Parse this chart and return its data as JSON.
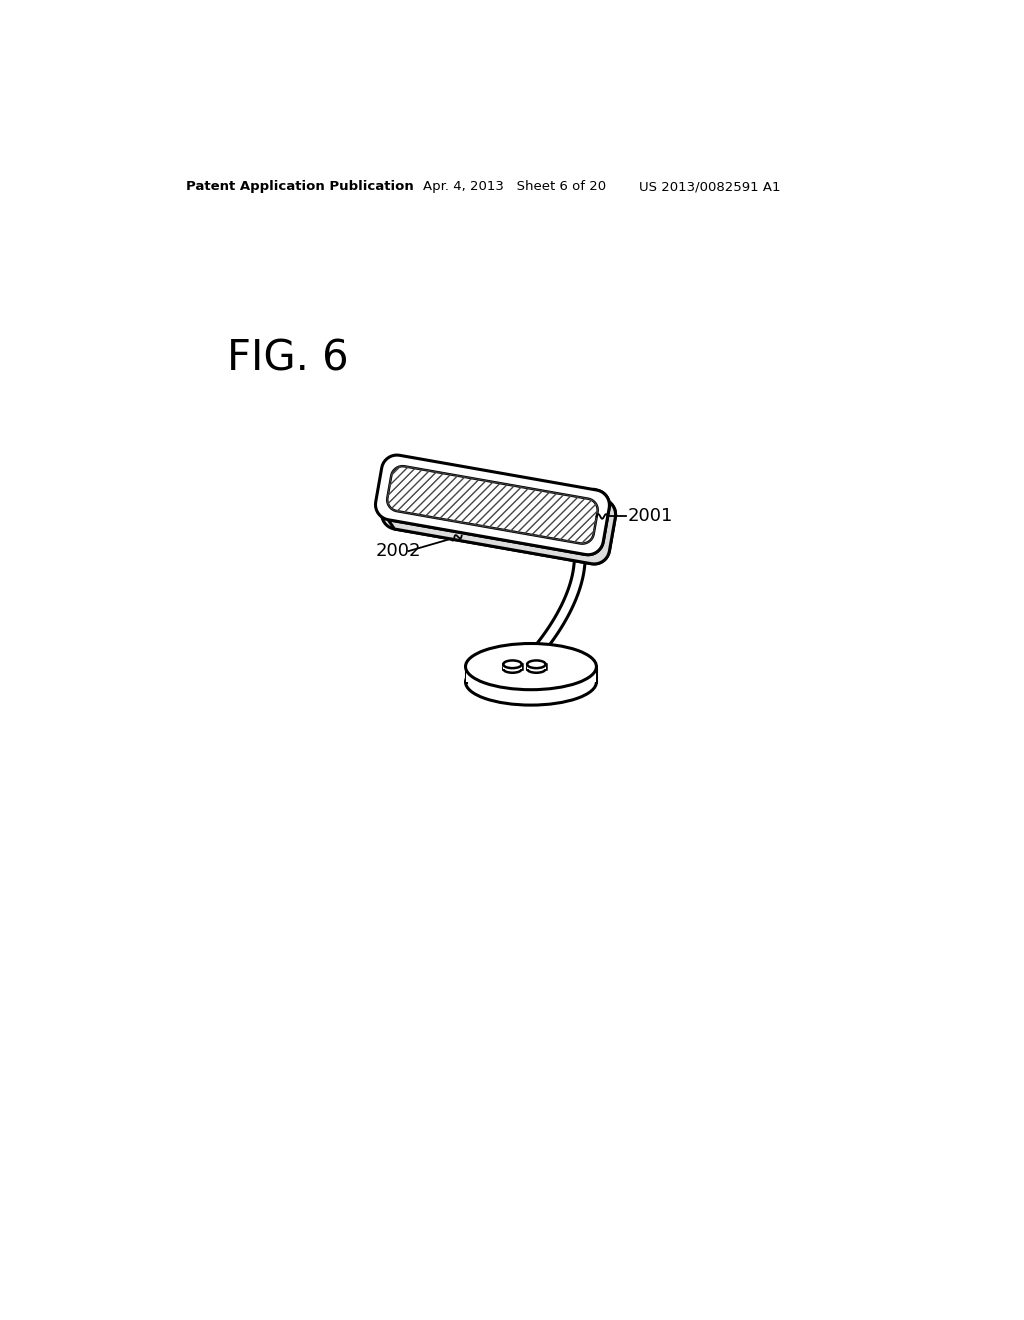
{
  "bg_color": "#ffffff",
  "line_color": "#000000",
  "header_left": "Patent Application Publication",
  "header_center": "Apr. 4, 2013   Sheet 6 of 20",
  "header_right": "US 2013/0082591 A1",
  "fig_label": "FIG. 6",
  "label_2001": "2001",
  "label_2002": "2002"
}
